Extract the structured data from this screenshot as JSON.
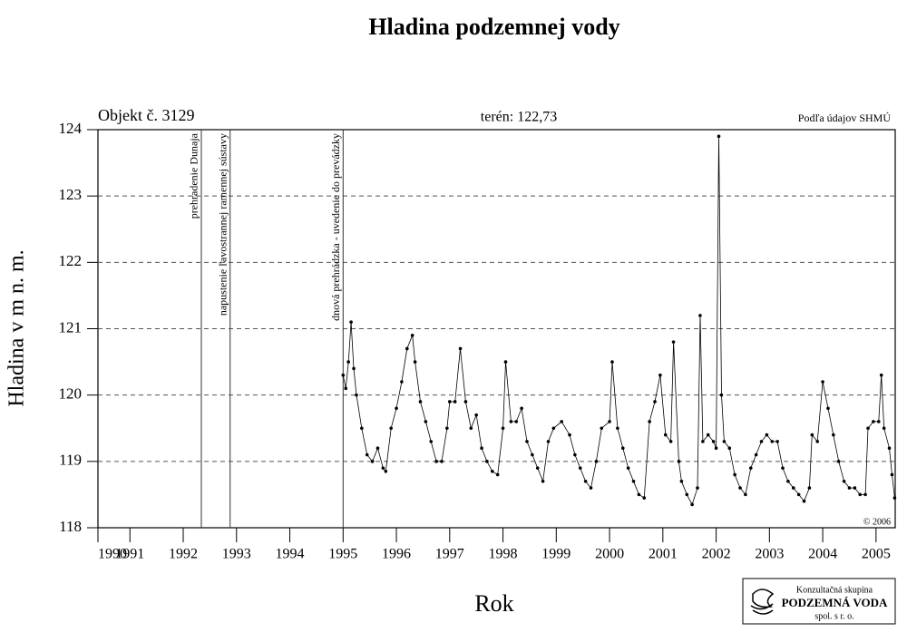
{
  "chart_data": {
    "type": "line",
    "title": "Hladina podzemnej vody",
    "subtitle": "terén: 122,73",
    "object_label": "Objekt č. 3129",
    "source": "Podľa údajov SHMÚ",
    "copyright": "© 2006",
    "xlabel": "Rok",
    "ylabel": "Hladina v m n. m.",
    "logo": {
      "line1": "Konzultačná skupina",
      "line2": "PODZEMNÁ VODA",
      "line3": "spol. s r. o."
    },
    "xlim": [
      1990.4,
      2005.36
    ],
    "ylim": [
      118,
      124
    ],
    "xticks": [
      {
        "value": 1990.4,
        "label": "1990"
      },
      1991,
      1992,
      1993,
      1994,
      1995,
      1996,
      1997,
      1998,
      1999,
      2000,
      2001,
      2002,
      2003,
      2004,
      2005
    ],
    "yticks": [
      118,
      119,
      120,
      121,
      122,
      123,
      124
    ],
    "grid": true,
    "annotations": [
      {
        "x": 1992.34,
        "text": "prehradenie Dunaja"
      },
      {
        "x": 1992.88,
        "text": "napustenie ľavostrannej ramennej sústavy"
      },
      {
        "x": 1995.0,
        "text": "dnová prehrádzka - uvedenie do prevádzky"
      }
    ],
    "color": "#000000",
    "x": [
      1995.0,
      1995.05,
      1995.1,
      1995.15,
      1995.2,
      1995.25,
      1995.35,
      1995.45,
      1995.55,
      1995.65,
      1995.75,
      1995.8,
      1995.9,
      1996.0,
      1996.1,
      1996.2,
      1996.3,
      1996.35,
      1996.45,
      1996.55,
      1996.65,
      1996.75,
      1996.85,
      1996.95,
      1997.0,
      1997.1,
      1997.2,
      1997.3,
      1997.4,
      1997.5,
      1997.6,
      1997.7,
      1997.8,
      1997.9,
      1998.0,
      1998.05,
      1998.15,
      1998.25,
      1998.35,
      1998.45,
      1998.55,
      1998.65,
      1998.75,
      1998.85,
      1998.95,
      1999.1,
      1999.25,
      1999.35,
      1999.45,
      1999.55,
      1999.65,
      1999.75,
      1999.85,
      2000.0,
      2000.05,
      2000.15,
      2000.25,
      2000.35,
      2000.45,
      2000.55,
      2000.65,
      2000.75,
      2000.85,
      2000.95,
      2001.05,
      2001.15,
      2001.2,
      2001.3,
      2001.35,
      2001.45,
      2001.55,
      2001.65,
      2001.7,
      2001.75,
      2001.85,
      2001.95,
      2002.0,
      2002.05,
      2002.1,
      2002.15,
      2002.25,
      2002.35,
      2002.45,
      2002.55,
      2002.65,
      2002.75,
      2002.85,
      2002.95,
      2003.05,
      2003.15,
      2003.25,
      2003.35,
      2003.45,
      2003.55,
      2003.65,
      2003.75,
      2003.8,
      2003.9,
      2004.0,
      2004.1,
      2004.2,
      2004.3,
      2004.4,
      2004.5,
      2004.6,
      2004.7,
      2004.8,
      2004.85,
      2004.95,
      2005.05,
      2005.1,
      2005.15,
      2005.25,
      2005.3,
      2005.35
    ],
    "values": [
      120.3,
      120.1,
      120.5,
      121.1,
      120.4,
      120.0,
      119.5,
      119.1,
      119.0,
      119.2,
      118.9,
      118.85,
      119.5,
      119.8,
      120.2,
      120.7,
      120.9,
      120.5,
      119.9,
      119.6,
      119.3,
      119.0,
      119.0,
      119.5,
      119.9,
      119.9,
      120.7,
      119.9,
      119.5,
      119.7,
      119.2,
      119.0,
      118.85,
      118.8,
      119.5,
      120.5,
      119.6,
      119.6,
      119.8,
      119.3,
      119.1,
      118.9,
      118.7,
      119.3,
      119.5,
      119.6,
      119.4,
      119.1,
      118.9,
      118.7,
      118.6,
      119.0,
      119.5,
      119.6,
      120.5,
      119.5,
      119.2,
      118.9,
      118.7,
      118.5,
      118.45,
      119.6,
      119.9,
      120.3,
      119.4,
      119.3,
      120.8,
      119.0,
      118.7,
      118.5,
      118.35,
      118.6,
      121.2,
      119.3,
      119.4,
      119.3,
      119.2,
      123.9,
      120.0,
      119.3,
      119.2,
      118.8,
      118.6,
      118.5,
      118.9,
      119.1,
      119.3,
      119.4,
      119.3,
      119.3,
      118.9,
      118.7,
      118.6,
      118.5,
      118.4,
      118.6,
      119.4,
      119.3,
      120.2,
      119.8,
      119.4,
      119.0,
      118.7,
      118.6,
      118.6,
      118.5,
      118.5,
      119.5,
      119.6,
      119.6,
      120.3,
      119.5,
      119.2,
      118.8,
      118.45
    ]
  }
}
